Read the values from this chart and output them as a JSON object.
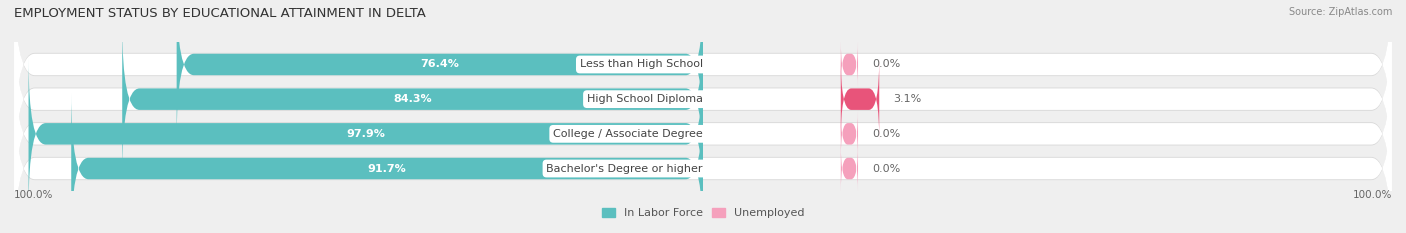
{
  "title": "EMPLOYMENT STATUS BY EDUCATIONAL ATTAINMENT IN DELTA",
  "source": "Source: ZipAtlas.com",
  "categories": [
    "Less than High School",
    "High School Diploma",
    "College / Associate Degree",
    "Bachelor's Degree or higher"
  ],
  "labor_force": [
    76.4,
    84.3,
    97.9,
    91.7
  ],
  "unemployed": [
    0.0,
    3.1,
    0.0,
    0.0
  ],
  "labor_force_color": "#5bbfbf",
  "unemployed_color_high": "#e8547a",
  "unemployed_color_low": "#f5a0bc",
  "background_color": "#efefef",
  "bar_background_color": "#ffffff",
  "bar_shadow_color": "#d8d8d8",
  "bar_height": 0.62,
  "xlim_left": -100,
  "xlim_right": 100,
  "title_fontsize": 9.5,
  "label_fontsize": 8.0,
  "tick_fontsize": 7.5,
  "legend_fontsize": 8.0,
  "left_tick_label": "100.0%",
  "right_tick_label": "100.0%"
}
